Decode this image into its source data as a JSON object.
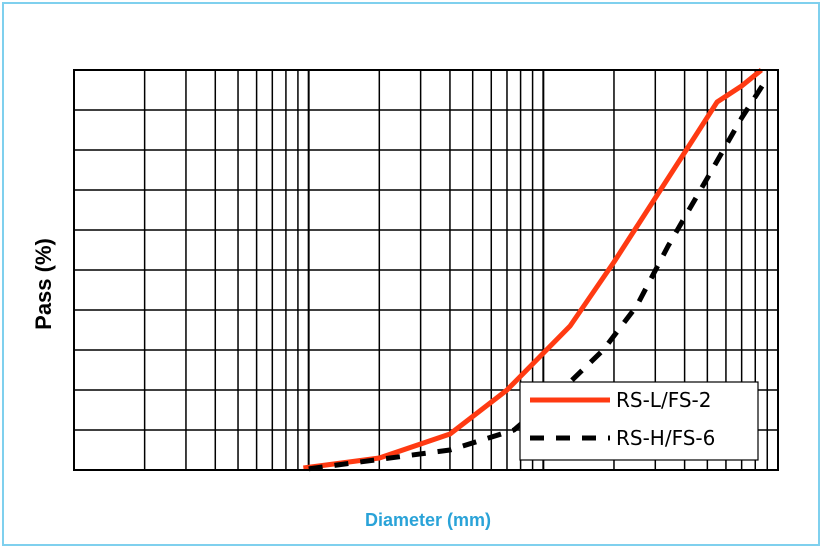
{
  "chart_data": {
    "type": "line",
    "title": "",
    "xlabel": "Diameter (mm)",
    "ylabel": "Pass (%)",
    "xscale": "log",
    "xlim": [
      0.001,
      1
    ],
    "ylim": [
      0,
      100
    ],
    "grid": true,
    "legend_position": "bottom-right",
    "series": [
      {
        "name": "RS-L/FS-2",
        "color": "#ff3a12",
        "style": "solid",
        "points": [
          [
            0.0095,
            0.5
          ],
          [
            0.02,
            3
          ],
          [
            0.04,
            9
          ],
          [
            0.07,
            20
          ],
          [
            0.13,
            36
          ],
          [
            0.2,
            52
          ],
          [
            0.3,
            68
          ],
          [
            0.45,
            84
          ],
          [
            0.55,
            92
          ],
          [
            0.7,
            96
          ],
          [
            0.85,
            100
          ]
        ]
      },
      {
        "name": "RS-H/FS-6",
        "color": "#000000",
        "style": "dashed",
        "points": [
          [
            0.01,
            0.3
          ],
          [
            0.04,
            5
          ],
          [
            0.075,
            10
          ],
          [
            0.13,
            22
          ],
          [
            0.18,
            30
          ],
          [
            0.25,
            41
          ],
          [
            0.34,
            56
          ],
          [
            0.5,
            73
          ],
          [
            0.7,
            88
          ],
          [
            0.9,
            98
          ]
        ]
      }
    ]
  }
}
